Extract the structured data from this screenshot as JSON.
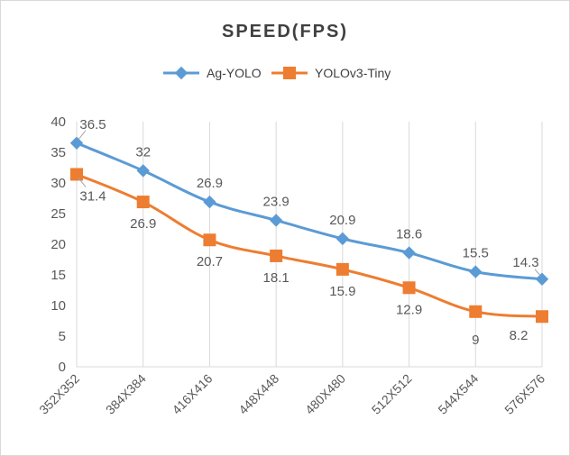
{
  "chart_data": {
    "type": "line",
    "title": "SPEED(FPS)",
    "categories": [
      "352X352",
      "384X384",
      "416X416",
      "448X448",
      "480X480",
      "512X512",
      "544X544",
      "576X576"
    ],
    "series": [
      {
        "name": "Ag-YOLO",
        "color": "#5b9bd5",
        "marker": "diamond",
        "values": [
          36.5,
          32,
          26.9,
          23.9,
          20.9,
          18.6,
          15.5,
          14.3
        ],
        "labels": [
          "36.5",
          "32",
          "26.9",
          "23.9",
          "20.9",
          "18.6",
          "15.5",
          "14.3"
        ],
        "label_position": "above"
      },
      {
        "name": "YOLOv3-Tiny",
        "color": "#ed7d31",
        "marker": "square",
        "values": [
          31.4,
          26.9,
          20.7,
          18.1,
          15.9,
          12.9,
          9,
          8.2
        ],
        "labels": [
          "31.4",
          "26.9",
          "20.7",
          "18.1",
          "15.9",
          "12.9",
          "9",
          "8.2"
        ],
        "label_position": "below"
      }
    ],
    "ylim": [
      0,
      40
    ],
    "yticks": [
      "0",
      "5",
      "10",
      "15",
      "20",
      "25",
      "30",
      "35",
      "40"
    ],
    "xlabel": "",
    "ylabel": "",
    "grid": "vertical",
    "legend": "top-center"
  }
}
